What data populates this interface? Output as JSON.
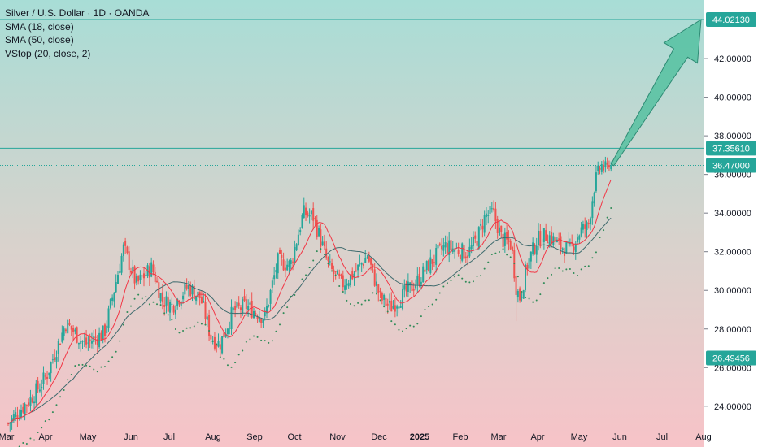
{
  "legend": {
    "title": "Silver / U.S. Dollar · 1D · OANDA",
    "indicators": [
      "SMA (18, close)",
      "SMA (50, close)",
      "VStop (20, close, 2)"
    ]
  },
  "colors": {
    "bg_top": "#a8ddd6",
    "bg_bottom": "#f7c3c8",
    "up": "#26a69a",
    "down": "#ef5350",
    "sma18": "#f23645",
    "sma50": "#3f6b6e",
    "vstop": "#2e8b57",
    "level_line": "#26a69a",
    "arrow_fill": "#4fbf9e",
    "arrow_stroke": "#2e8b74"
  },
  "chart_data": {
    "type": "candlestick",
    "symbol": "Silver / U.S. Dollar",
    "timeframe": "1D",
    "source": "OANDA",
    "ylim": [
      22.6,
      45.3
    ],
    "y_ticks": [
      "24.00000",
      "26.00000",
      "28.00000",
      "30.00000",
      "32.00000",
      "34.00000",
      "36.00000",
      "38.00000",
      "40.00000",
      "42.00000"
    ],
    "x_labels": [
      "Mar",
      "Apr",
      "May",
      "Jun",
      "Jul",
      "Aug",
      "Sep",
      "Oct",
      "Nov",
      "Dec",
      "2025",
      "Feb",
      "Mar",
      "Apr",
      "May",
      "Jun",
      "Jul",
      "Aug"
    ],
    "levels": [
      {
        "value": 44.0213,
        "label": "44.02130"
      },
      {
        "value": 37.3561,
        "label": "37.35610"
      },
      {
        "value": 26.49456,
        "label": "26.49456"
      }
    ],
    "current_price": {
      "value": 36.47,
      "label": "36.47000"
    },
    "close_path": [
      {
        "d": 0,
        "c": 23.1
      },
      {
        "d": 20,
        "c": 24.6
      },
      {
        "d": 30,
        "c": 25.6
      },
      {
        "d": 45,
        "c": 28.3
      },
      {
        "d": 60,
        "c": 27.2
      },
      {
        "d": 75,
        "c": 27.8
      },
      {
        "d": 90,
        "c": 32.2
      },
      {
        "d": 100,
        "c": 30.3
      },
      {
        "d": 112,
        "c": 31.2
      },
      {
        "d": 120,
        "c": 29.5
      },
      {
        "d": 128,
        "c": 29.2
      },
      {
        "d": 140,
        "c": 30.2
      },
      {
        "d": 150,
        "c": 29.6
      },
      {
        "d": 158,
        "c": 27.6
      },
      {
        "d": 165,
        "c": 27.2
      },
      {
        "d": 175,
        "c": 28.9
      },
      {
        "d": 185,
        "c": 29.2
      },
      {
        "d": 200,
        "c": 28.6
      },
      {
        "d": 210,
        "c": 31.5
      },
      {
        "d": 220,
        "c": 31.3
      },
      {
        "d": 230,
        "c": 34.0
      },
      {
        "d": 238,
        "c": 33.8
      },
      {
        "d": 250,
        "c": 31.2
      },
      {
        "d": 260,
        "c": 30.3
      },
      {
        "d": 270,
        "c": 30.9
      },
      {
        "d": 280,
        "c": 31.8
      },
      {
        "d": 290,
        "c": 29.6
      },
      {
        "d": 298,
        "c": 29.1
      },
      {
        "d": 310,
        "c": 29.9
      },
      {
        "d": 318,
        "c": 30.4
      },
      {
        "d": 330,
        "c": 31.5
      },
      {
        "d": 340,
        "c": 32.3
      },
      {
        "d": 350,
        "c": 32.1
      },
      {
        "d": 358,
        "c": 31.9
      },
      {
        "d": 365,
        "c": 32.6
      },
      {
        "d": 372,
        "c": 33.9
      },
      {
        "d": 378,
        "c": 34.0
      },
      {
        "d": 385,
        "c": 32.6
      },
      {
        "d": 392,
        "c": 32.4
      },
      {
        "d": 396,
        "c": 30.1
      },
      {
        "d": 399,
        "c": 29.6
      },
      {
        "d": 404,
        "c": 31.2
      },
      {
        "d": 412,
        "c": 32.6
      },
      {
        "d": 420,
        "c": 32.9
      },
      {
        "d": 430,
        "c": 32.3
      },
      {
        "d": 438,
        "c": 32.1
      },
      {
        "d": 446,
        "c": 33.1
      },
      {
        "d": 452,
        "c": 33.3
      },
      {
        "d": 457,
        "c": 35.5
      },
      {
        "d": 462,
        "c": 36.5
      },
      {
        "d": 466,
        "c": 36.2
      },
      {
        "d": 470,
        "c": 36.47
      }
    ],
    "arrow": {
      "from": {
        "d": 471,
        "v": 36.5
      },
      "to": {
        "d": 540,
        "v": 44.02
      }
    },
    "series": [
      {
        "name": "SMA (18, close)",
        "kind": "sma",
        "period": 18
      },
      {
        "name": "SMA (50, close)",
        "kind": "sma",
        "period": 50
      },
      {
        "name": "VStop (20, close, 2)",
        "kind": "vstop"
      }
    ]
  }
}
